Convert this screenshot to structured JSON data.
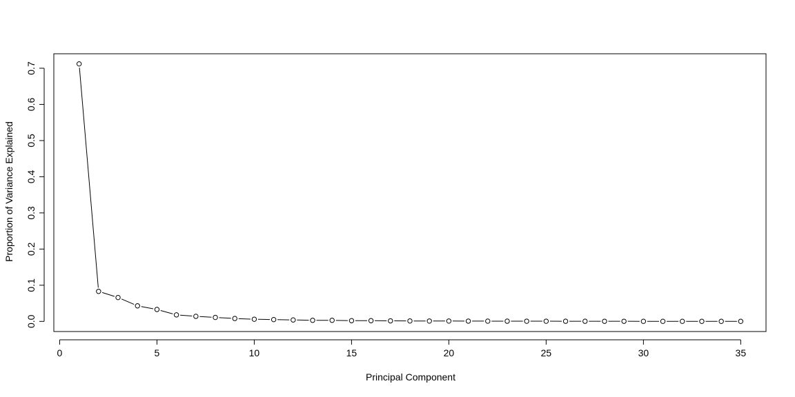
{
  "chart_data": {
    "type": "line",
    "title": "",
    "xlabel": "Principal Component",
    "ylabel": "Proportion of Variance Explained",
    "xlim": [
      -0.3,
      36.3
    ],
    "ylim": [
      -0.028,
      0.74
    ],
    "x_ticks": [
      0,
      5,
      10,
      15,
      20,
      25,
      30,
      35
    ],
    "y_ticks": [
      0.0,
      0.1,
      0.2,
      0.3,
      0.4,
      0.5,
      0.6,
      0.7
    ],
    "x_tick_labels": [
      "0",
      "5",
      "10",
      "15",
      "20",
      "25",
      "30",
      "35"
    ],
    "y_tick_labels": [
      "0.0",
      "0.1",
      "0.2",
      "0.3",
      "0.4",
      "0.5",
      "0.6",
      "0.7"
    ],
    "grid": false,
    "legend": "none",
    "marker": "open-circle",
    "line_color": "#000000",
    "series": [
      {
        "x": [
          1,
          2,
          3,
          4,
          5,
          6,
          7,
          8,
          9,
          10,
          11,
          12,
          13,
          14,
          15,
          16,
          17,
          18,
          19,
          20,
          21,
          22,
          23,
          24,
          25,
          26,
          27,
          28,
          29,
          30,
          31,
          32,
          33,
          34,
          35
        ],
        "values": [
          0.712,
          0.083,
          0.066,
          0.043,
          0.033,
          0.018,
          0.014,
          0.011,
          0.008,
          0.006,
          0.005,
          0.004,
          0.003,
          0.003,
          0.002,
          0.002,
          0.0015,
          0.0012,
          0.001,
          0.001,
          0.0008,
          0.0007,
          0.0006,
          0.0005,
          0.0005,
          0.0004,
          0.0004,
          0.0003,
          0.0003,
          0.0002,
          0.0002,
          0.0002,
          0.0001,
          0.0001,
          0.0001
        ]
      }
    ]
  }
}
